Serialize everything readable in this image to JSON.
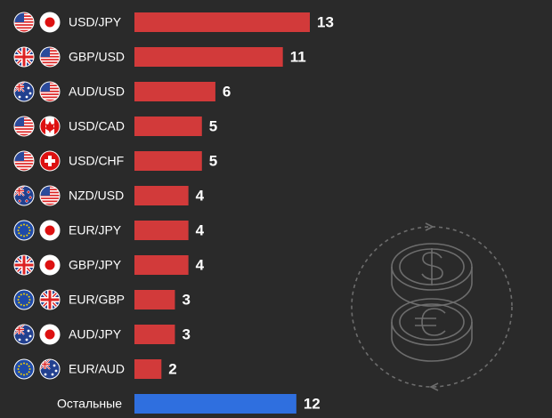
{
  "chart_data": {
    "type": "bar",
    "orientation": "horizontal",
    "categories": [
      "USD/JPY",
      "GBP/USD",
      "AUD/USD",
      "USD/CAD",
      "USD/CHF",
      "NZD/USD",
      "EUR/JPY",
      "GBP/JPY",
      "EUR/GBP",
      "AUD/JPY",
      "EUR/AUD",
      "Остальные"
    ],
    "values": [
      13,
      11,
      6,
      5,
      5,
      4,
      4,
      4,
      3,
      3,
      2,
      12
    ],
    "colors": [
      "#d23a3a",
      "#d23a3a",
      "#d23a3a",
      "#d23a3a",
      "#d23a3a",
      "#d23a3a",
      "#d23a3a",
      "#d23a3a",
      "#d23a3a",
      "#d23a3a",
      "#d23a3a",
      "#2f6fdf"
    ]
  }
}
